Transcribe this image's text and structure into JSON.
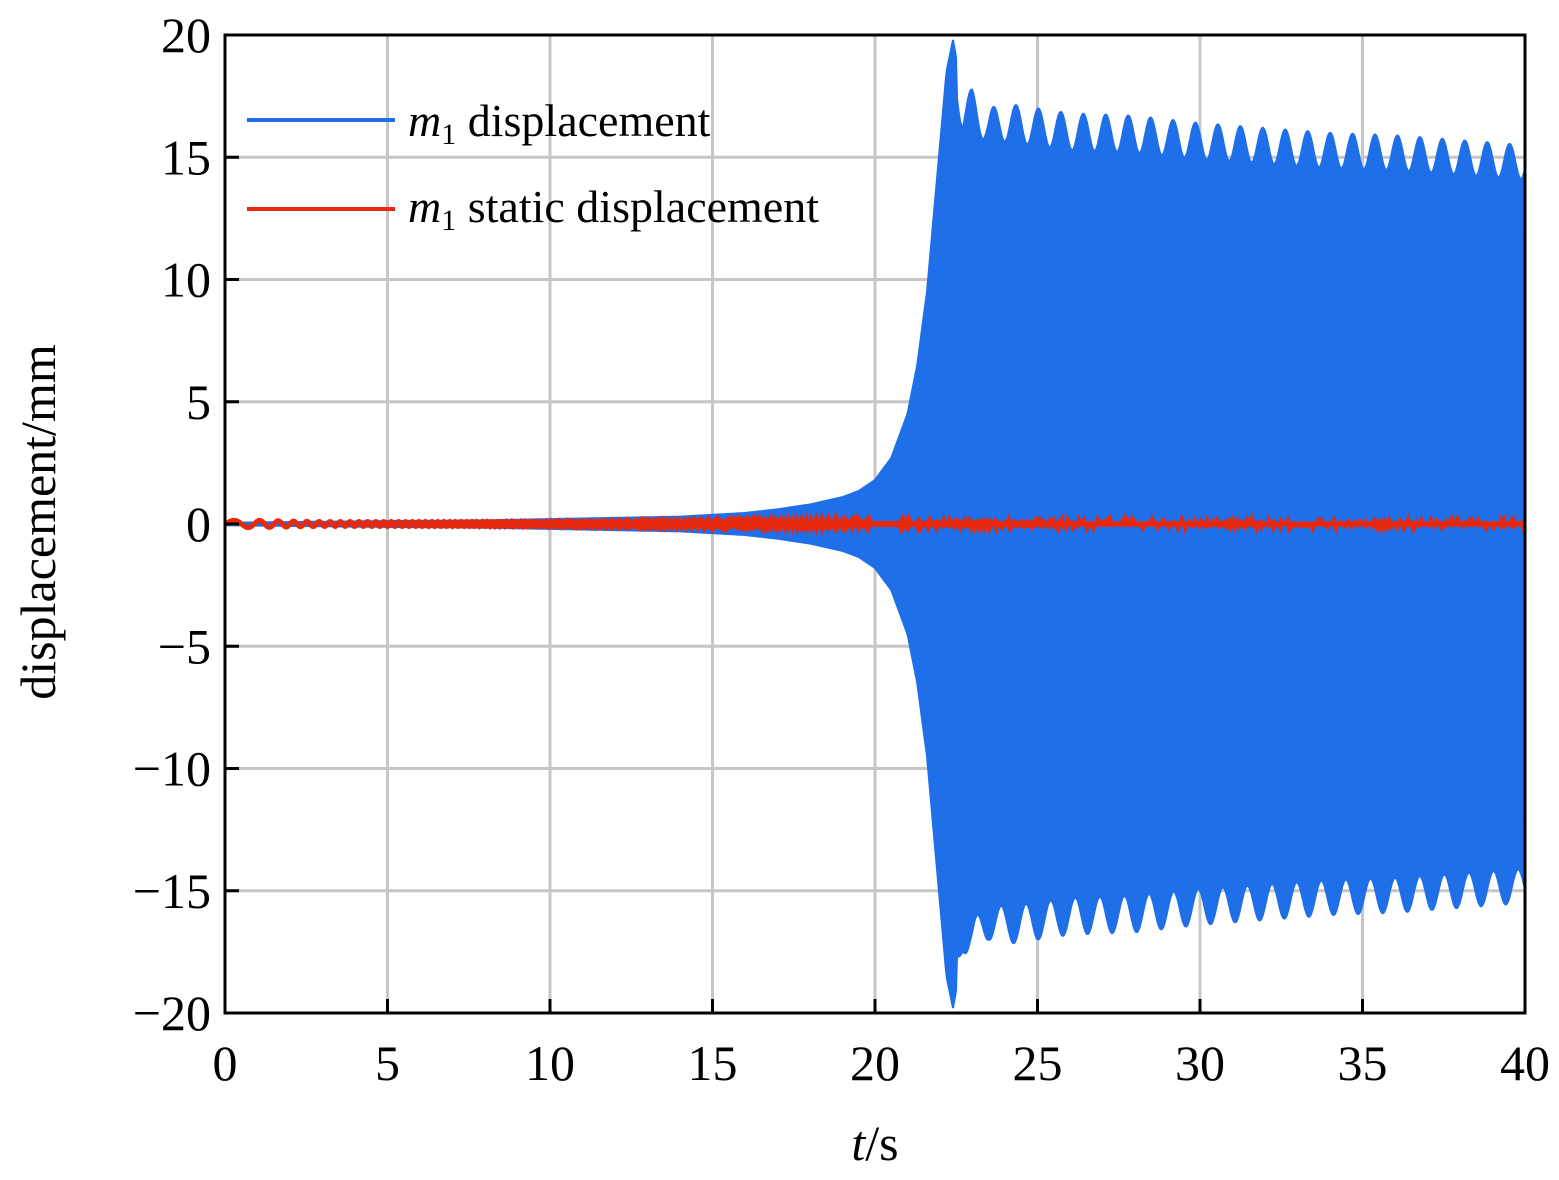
{
  "chart_data": {
    "type": "line",
    "title": "",
    "xlabel_var": "t",
    "xlabel_unit": "/s",
    "ylabel": "displacement/mm",
    "xlim": [
      0,
      40
    ],
    "ylim": [
      -20,
      20
    ],
    "x_ticks": [
      0,
      5,
      10,
      15,
      20,
      25,
      30,
      35,
      40
    ],
    "y_ticks": [
      20,
      15,
      10,
      5,
      0,
      -5,
      -10,
      -15,
      -20
    ],
    "x_tick_labels": [
      "0",
      "5",
      "10",
      "15",
      "20",
      "25",
      "30",
      "35",
      "40"
    ],
    "y_tick_labels": [
      "20",
      "15",
      "10",
      "5",
      "0",
      "−5",
      "−10",
      "−15",
      "−20"
    ],
    "grid": true,
    "legend_position": "top-left",
    "series": [
      {
        "name": "m",
        "name_sub": "1",
        "name_rest": " displacement",
        "color": "#1f6fe8",
        "style": "dense oscillation",
        "envelope_t": [
          0,
          2,
          5,
          8,
          10,
          12,
          14,
          16,
          17,
          18,
          19,
          19.5,
          20,
          20.5,
          21,
          21.3,
          21.6,
          21.8,
          22,
          22.2,
          22.4,
          22.7,
          23,
          23.5,
          24,
          25,
          26,
          28,
          30,
          32,
          34,
          36,
          38,
          40
        ],
        "envelope_y": [
          0.05,
          0.08,
          0.12,
          0.15,
          0.2,
          0.25,
          0.3,
          0.45,
          0.6,
          0.8,
          1.1,
          1.35,
          1.8,
          2.7,
          4.5,
          6.5,
          9.5,
          12.5,
          15.5,
          18.5,
          19.8,
          17.5,
          17.8,
          17.0,
          17.2,
          17.0,
          16.8,
          16.7,
          16.4,
          16.2,
          16.0,
          15.9,
          15.7,
          15.5
        ]
      },
      {
        "name": "m",
        "name_sub": "1",
        "name_rest": " static displacement",
        "color": "#e8280c",
        "style": "small oscillation near zero",
        "envelope_t": [
          0,
          1,
          2,
          3,
          5,
          40
        ],
        "envelope_y": [
          0.15,
          0.15,
          0.12,
          0.1,
          0.1,
          0.1
        ]
      }
    ]
  }
}
